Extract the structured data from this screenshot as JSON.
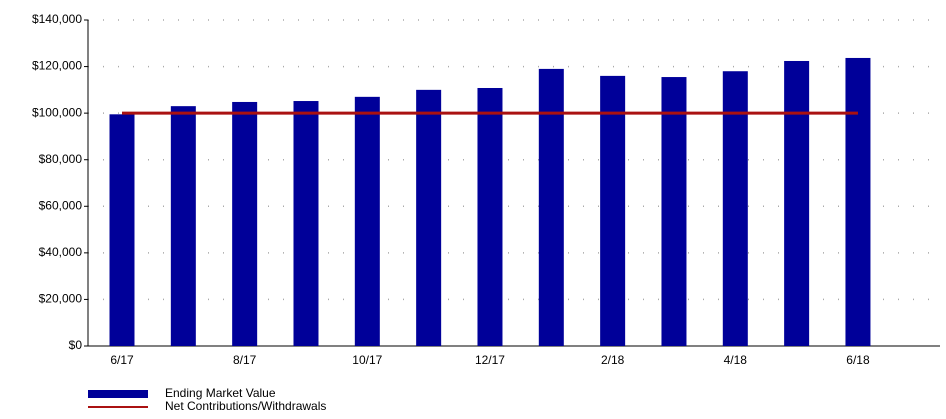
{
  "chart_data": {
    "type": "bar",
    "categories": [
      "6/17",
      null,
      "8/17",
      null,
      "10/17",
      null,
      "12/17",
      null,
      "2/18",
      null,
      "4/18",
      null,
      "6/18"
    ],
    "series": [
      {
        "name": "Ending Market Value",
        "type": "bar",
        "color": "#000099",
        "values": [
          99500,
          103000,
          104800,
          105200,
          107000,
          110000,
          110800,
          119000,
          116000,
          115500,
          118000,
          122400,
          123700
        ]
      },
      {
        "name": "Net Contributions/Withdrawals",
        "type": "line",
        "color": "#aa1111",
        "values": [
          100000,
          100000,
          100000,
          100000,
          100000,
          100000,
          100000,
          100000,
          100000,
          100000,
          100000,
          100000,
          100000
        ]
      }
    ],
    "ylim": [
      0,
      140000
    ],
    "yticks": [
      {
        "value": 0,
        "label": "$0"
      },
      {
        "value": 20000,
        "label": "$20,000"
      },
      {
        "value": 40000,
        "label": "$40,000"
      },
      {
        "value": 60000,
        "label": "$60,000"
      },
      {
        "value": 80000,
        "label": "$80,000"
      },
      {
        "value": 100000,
        "label": "$100,000"
      },
      {
        "value": 120000,
        "label": "$120,000"
      },
      {
        "value": 140000,
        "label": "$140,000"
      }
    ],
    "grid": true,
    "legend": "bottom-left"
  }
}
